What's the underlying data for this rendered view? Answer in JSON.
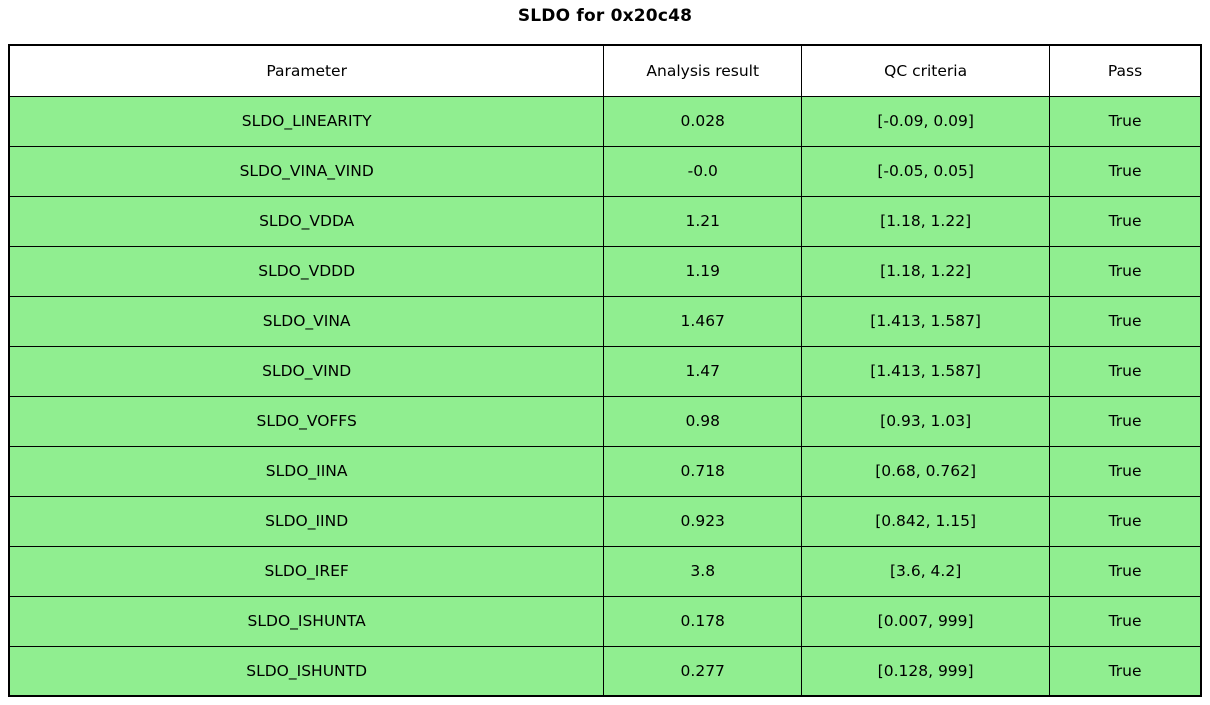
{
  "title": "SLDO for 0x20c48",
  "colors": {
    "pass_row_bg": "#90EE90",
    "header_bg": "#FFFFFF",
    "border": "#000000"
  },
  "chart_data": {
    "type": "table",
    "title": "SLDO for 0x20c48",
    "columns": [
      "Parameter",
      "Analysis result",
      "QC criteria",
      "Pass"
    ],
    "rows": [
      [
        "SLDO_LINEARITY",
        "0.028",
        "[-0.09, 0.09]",
        "True"
      ],
      [
        "SLDO_VINA_VIND",
        "-0.0",
        "[-0.05, 0.05]",
        "True"
      ],
      [
        "SLDO_VDDA",
        "1.21",
        "[1.18, 1.22]",
        "True"
      ],
      [
        "SLDO_VDDD",
        "1.19",
        "[1.18, 1.22]",
        "True"
      ],
      [
        "SLDO_VINA",
        "1.467",
        "[1.413, 1.587]",
        "True"
      ],
      [
        "SLDO_VIND",
        "1.47",
        "[1.413, 1.587]",
        "True"
      ],
      [
        "SLDO_VOFFS",
        "0.98",
        "[0.93, 1.03]",
        "True"
      ],
      [
        "SLDO_IINA",
        "0.718",
        "[0.68, 0.762]",
        "True"
      ],
      [
        "SLDO_IIND",
        "0.923",
        "[0.842, 1.15]",
        "True"
      ],
      [
        "SLDO_IREF",
        "3.8",
        "[3.6, 4.2]",
        "True"
      ],
      [
        "SLDO_ISHUNTA",
        "0.178",
        "[0.007, 999]",
        "True"
      ],
      [
        "SLDO_ISHUNTD",
        "0.277",
        "[0.128, 999]",
        "True"
      ]
    ]
  }
}
